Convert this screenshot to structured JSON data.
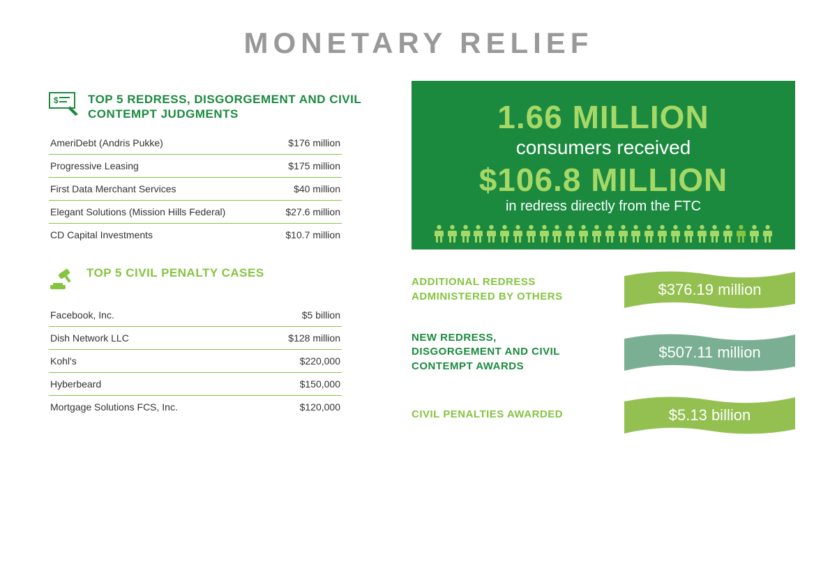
{
  "title": "MONETARY RELIEF",
  "colors": {
    "title_gray": "#999999",
    "dark_green": "#1b8a3f",
    "light_green": "#85c441",
    "lime_text": "#a5d867",
    "ribbon_light": "#94c051",
    "ribbon_teal": "#7aaf93",
    "text": "#333333",
    "white": "#ffffff"
  },
  "left": {
    "judgments": {
      "heading": "TOP 5 REDRESS, DISGORGEMENT AND CIVIL CONTEMPT JUDGMENTS",
      "rows": [
        {
          "name": "AmeriDebt (Andris Pukke)",
          "value": "$176 million"
        },
        {
          "name": "Progressive Leasing",
          "value": "$175 million"
        },
        {
          "name": "First Data Merchant Services",
          "value": "$40 million"
        },
        {
          "name": "Elegant Solutions (Mission Hills Federal)",
          "value": "$27.6 million"
        },
        {
          "name": "CD Capital Investments",
          "value": "$10.7 million"
        }
      ]
    },
    "penalties": {
      "heading": "TOP 5 CIVIL PENALTY CASES",
      "rows": [
        {
          "name": "Facebook, Inc.",
          "value": "$5 billion"
        },
        {
          "name": "Dish Network LLC",
          "value": "$128 million"
        },
        {
          "name": "Kohl's",
          "value": "$220,000"
        },
        {
          "name": "Hyberbeard",
          "value": "$150,000"
        },
        {
          "name": "Mortgage Solutions FCS, Inc.",
          "value": "$120,000"
        }
      ]
    }
  },
  "hero": {
    "line1": "1.66 MILLION",
    "line2": "consumers received",
    "line3": "$106.8 MILLION",
    "line4": "in redress directly from the FTC",
    "people_count": 26
  },
  "stats": [
    {
      "label": "ADDITIONAL REDRESS ADMINISTERED BY OTHERS",
      "value": "$376.19 million",
      "label_color": "#85c441",
      "ribbon_color": "#94c051"
    },
    {
      "label": "NEW REDRESS, DISGORGEMENT AND CIVIL CONTEMPT AWARDS",
      "value": "$507.11 million",
      "label_color": "#1b8a3f",
      "ribbon_color": "#7aaf93"
    },
    {
      "label": "CIVIL PENALTIES AWARDED",
      "value": "$5.13 billion",
      "label_color": "#85c441",
      "ribbon_color": "#94c051"
    }
  ]
}
